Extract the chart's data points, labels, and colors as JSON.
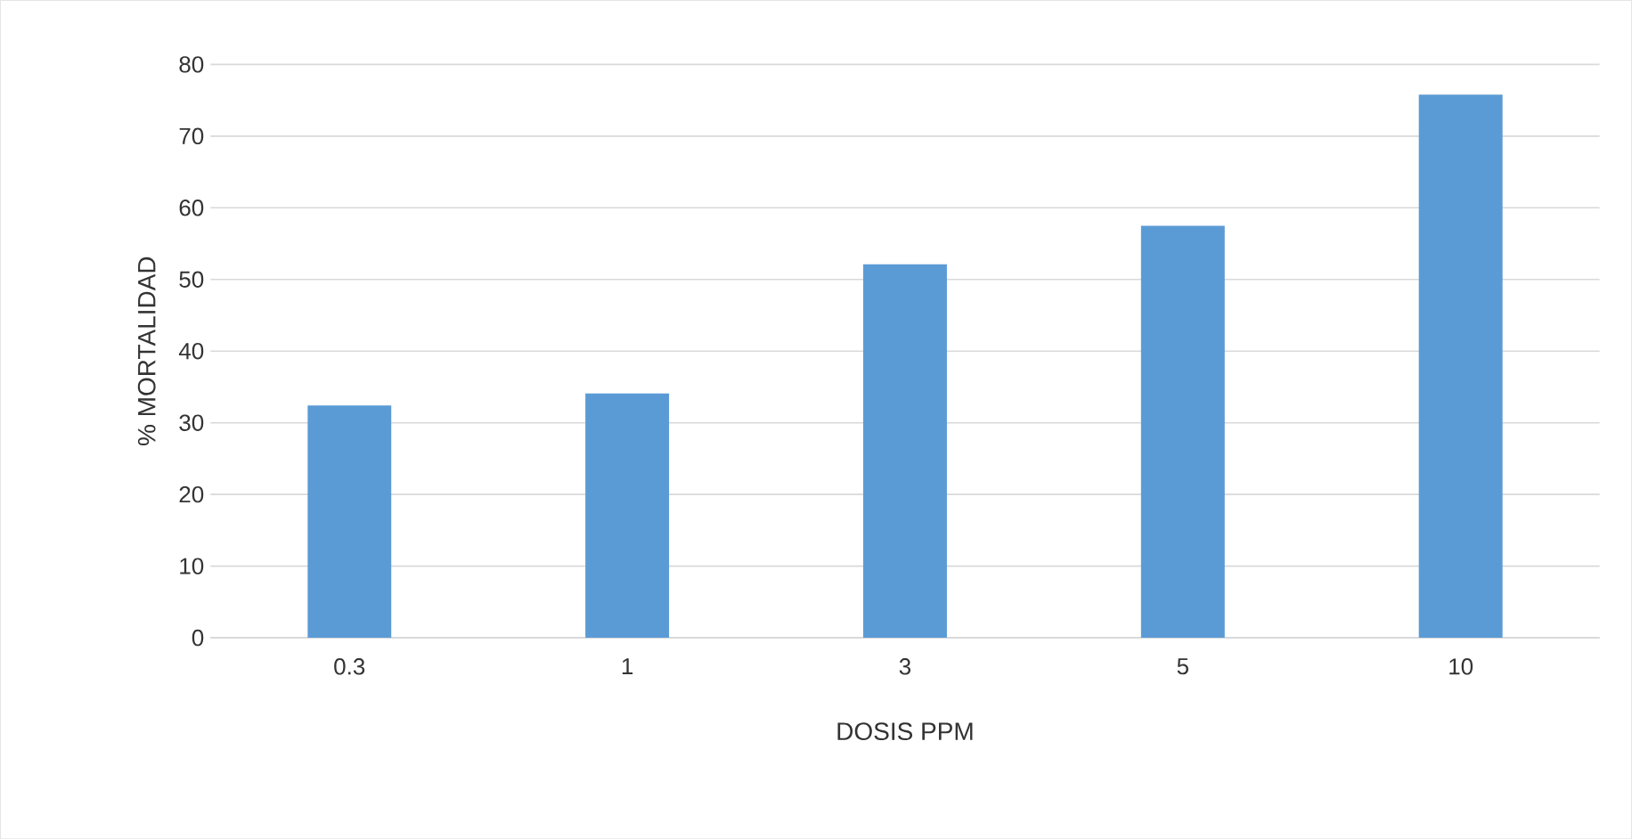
{
  "chart_data": {
    "type": "bar",
    "xlabel": "DOSIS PPM",
    "ylabel": "% MORTALIDAD",
    "categories": [
      "0.3",
      "1",
      "3",
      "5",
      "10"
    ],
    "values": [
      32.4,
      34.1,
      52.1,
      57.5,
      75.8
    ],
    "color": "#5b9bd5",
    "ylim": [
      0,
      80
    ],
    "yticks": [
      0,
      10,
      20,
      30,
      40,
      50,
      60,
      70,
      80
    ],
    "grid": "y"
  }
}
